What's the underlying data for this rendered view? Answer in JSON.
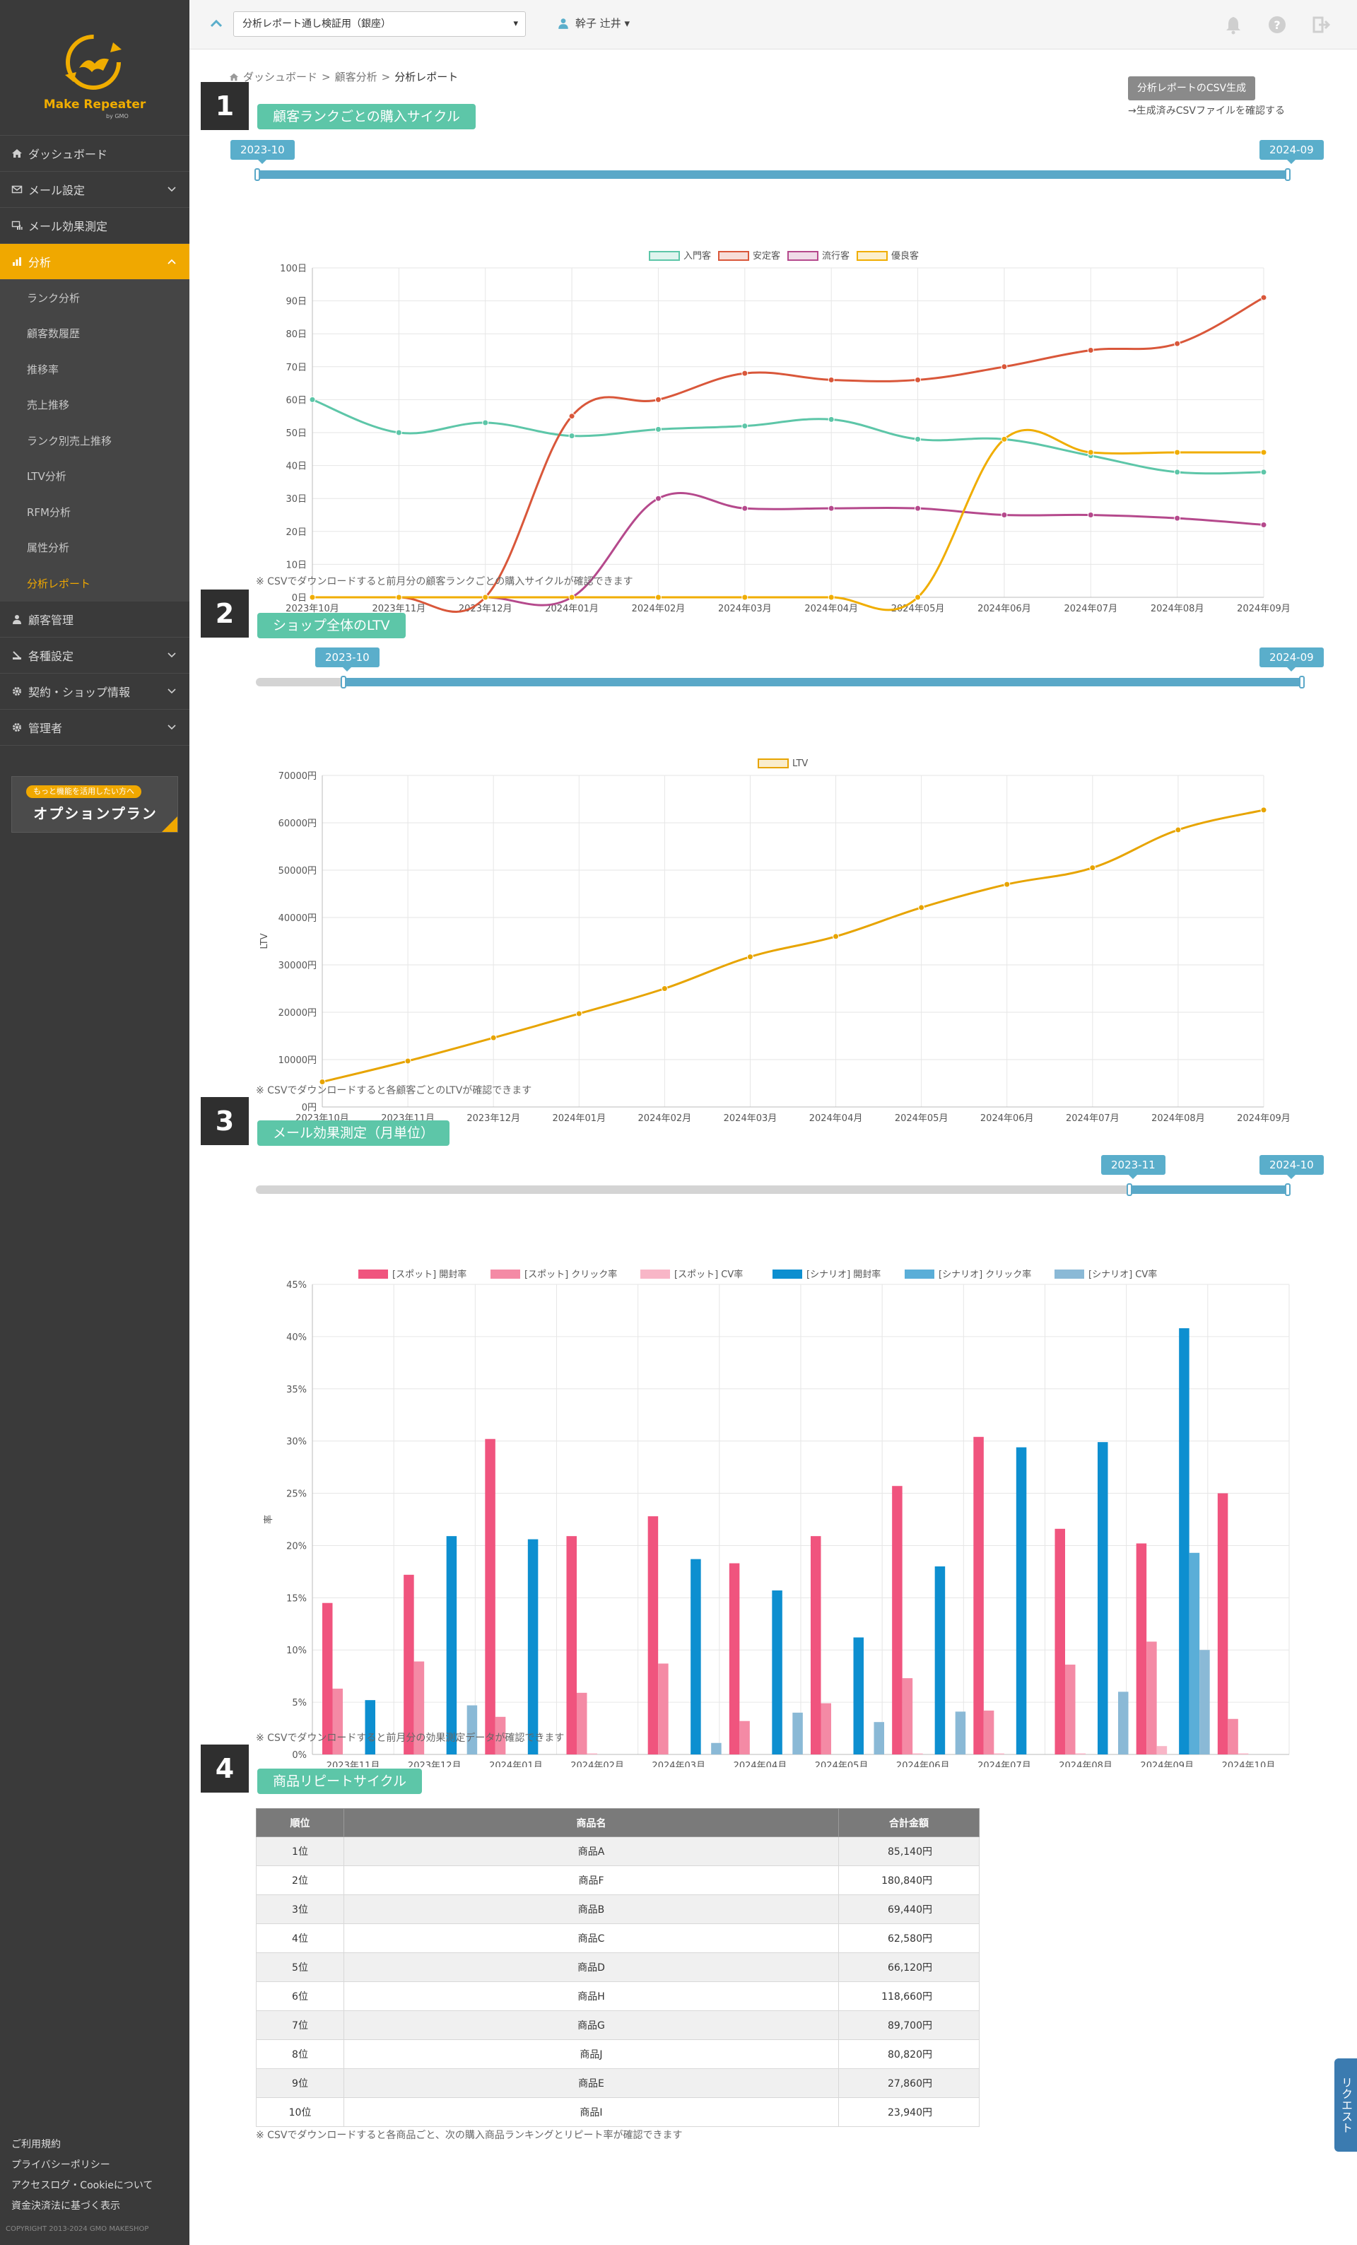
{
  "sidebar": {
    "logo_text": "Make Repeater",
    "logo_sub": "by GMO",
    "nav": [
      {
        "label": "ダッシュボード",
        "icon": "home-icon"
      },
      {
        "label": "メール設定",
        "icon": "mail-icon"
      },
      {
        "label": "メール効果測定",
        "icon": "mail-stats-icon"
      },
      {
        "label": "分析",
        "icon": "bar-chart-icon"
      }
    ],
    "sub_items": [
      "ランク分析",
      "顧客数履歴",
      "推移率",
      "売上推移",
      "ランク別売上推移",
      "LTV分析",
      "RFM分析",
      "属性分析",
      "分析レポート"
    ],
    "nav_bottom": [
      {
        "label": "顧客管理",
        "icon": "user-icon"
      },
      {
        "label": "各種設定",
        "icon": "settings-icon"
      },
      {
        "label": "契約・ショップ情報",
        "icon": "gear-icon"
      },
      {
        "label": "管理者",
        "icon": "admin-gear-icon"
      }
    ],
    "option_pill": "もっと機能を活用したい方へ",
    "option_title": "オプションプラン",
    "footer_links": [
      "ご利用規約",
      "プライバシーポリシー",
      "アクセスログ・Cookieについて",
      "資金決済法に基づく表示"
    ],
    "copyright": "COPYRIGHT 2013-2024 GMO MAKESHOP"
  },
  "topbar": {
    "shop_select": "分析レポート通し検証用（銀座）",
    "user": "幹子 辻井 ▾"
  },
  "breadcrumb": [
    "ダッシュボード",
    "顧客分析",
    "分析レポート"
  ],
  "csv": {
    "button": "分析レポートのCSV生成",
    "note": "→生成済みCSVファイルを確認する"
  },
  "sections": [
    {
      "num": "1",
      "title": "顧客ランクごとの購入サイクル",
      "range_start": "2023-10",
      "range_end": "2024-09",
      "note": "※ CSVでダウンロードすると前月分の顧客ランクごとの購入サイクルが確認できます"
    },
    {
      "num": "2",
      "title": "ショップ全体のLTV",
      "range_start": "2023-10",
      "range_end": "2024-09",
      "note": "※ CSVでダウンロードすると各顧客ごとのLTVが確認できます"
    },
    {
      "num": "3",
      "title": "メール効果測定（月単位）",
      "range_start": "2023-11",
      "range_end": "2024-10",
      "note": "※ CSVでダウンロードすると前月分の効果測定データが確認できます"
    },
    {
      "num": "4",
      "title": "商品リピートサイクル",
      "note": "※ CSVでダウンロードすると各商品ごと、次の購入商品ランキングとリピート率が確認できます"
    }
  ],
  "chart_data": [
    {
      "type": "line",
      "x": [
        "2023年10月",
        "2023年11月",
        "2023年12月",
        "2024年01月",
        "2024年02月",
        "2024年03月",
        "2024年04月",
        "2024年05月",
        "2024年06月",
        "2024年07月",
        "2024年08月",
        "2024年09月"
      ],
      "ylim": [
        0,
        100
      ],
      "yticks": [
        "0日",
        "10日",
        "20日",
        "30日",
        "40日",
        "50日",
        "60日",
        "70日",
        "80日",
        "90日",
        "100日"
      ],
      "legend_position": "top",
      "grid": true,
      "series": [
        {
          "name": "入門客",
          "color": "#5dc6a8",
          "values": [
            60,
            50,
            53,
            49,
            51,
            52,
            54,
            48,
            48,
            43,
            38,
            38
          ]
        },
        {
          "name": "安定客",
          "color": "#d9573a",
          "values": [
            0,
            0,
            0,
            55,
            60,
            68,
            66,
            66,
            70,
            75,
            77,
            91
          ]
        },
        {
          "name": "流行客",
          "color": "#b5498c",
          "values": [
            0,
            0,
            0,
            0,
            30,
            27,
            27,
            27,
            25,
            25,
            24,
            22
          ]
        },
        {
          "name": "優良客",
          "color": "#f0ad00",
          "values": [
            0,
            0,
            0,
            0,
            0,
            0,
            0,
            0,
            48,
            44,
            44,
            44
          ]
        }
      ]
    },
    {
      "type": "line",
      "x": [
        "2023年10月",
        "2023年11月",
        "2023年12月",
        "2024年01月",
        "2024年02月",
        "2024年03月",
        "2024年04月",
        "2024年05月",
        "2024年06月",
        "2024年07月",
        "2024年08月",
        "2024年09月"
      ],
      "ylabel": "LTV",
      "ylim": [
        0,
        70000
      ],
      "yticks": [
        "0円",
        "10000円",
        "20000円",
        "30000円",
        "40000円",
        "50000円",
        "60000円",
        "70000円"
      ],
      "legend_position": "top",
      "grid": true,
      "series": [
        {
          "name": "LTV",
          "color": "#e7a400",
          "values": [
            5300,
            9700,
            14600,
            19700,
            25000,
            31700,
            36000,
            42100,
            47000,
            50500,
            58500,
            62700
          ]
        }
      ]
    },
    {
      "type": "bar",
      "categories": [
        "2023年11月",
        "2023年12月",
        "2024年01月",
        "2024年02月",
        "2024年03月",
        "2024年04月",
        "2024年05月",
        "2024年06月",
        "2024年07月",
        "2024年08月",
        "2024年09月",
        "2024年10月"
      ],
      "ylabel": "率",
      "ylim": [
        0,
        45
      ],
      "yticks": [
        "0%",
        "5%",
        "10%",
        "15%",
        "20%",
        "25%",
        "30%",
        "35%",
        "40%",
        "45%"
      ],
      "legend_position": "top",
      "grid": true,
      "series": [
        {
          "name": "[スポット] 開封率",
          "color": "#f0547e",
          "values": [
            14.5,
            17.2,
            30.2,
            20.9,
            22.8,
            18.3,
            20.9,
            25.7,
            30.4,
            21.6,
            20.2,
            25.0
          ]
        },
        {
          "name": "[スポット] クリック率",
          "color": "#f48aa5",
          "values": [
            6.3,
            8.9,
            3.6,
            5.9,
            8.7,
            3.2,
            4.9,
            7.3,
            4.2,
            8.6,
            10.8,
            3.4
          ]
        },
        {
          "name": "[スポット] CV率",
          "color": "#f8b6c7",
          "values": [
            0,
            0,
            0,
            0.1,
            0,
            0,
            0,
            0.1,
            0.1,
            0.1,
            0.8,
            0.1
          ]
        },
        {
          "name": "[シナリオ] 開封率",
          "color": "#0d8fd0",
          "values": [
            5.2,
            20.9,
            20.6,
            0,
            18.7,
            15.7,
            11.2,
            18.0,
            29.4,
            29.9,
            40.8,
            0
          ]
        },
        {
          "name": "[シナリオ] クリック率",
          "color": "#5aaed8",
          "values": [
            0,
            0,
            0,
            0,
            0,
            0,
            0,
            0,
            0,
            0,
            19.3,
            0
          ]
        },
        {
          "name": "[シナリオ] CV率",
          "color": "#8ab9d6",
          "values": [
            0,
            4.7,
            0,
            0,
            1.1,
            4.0,
            3.1,
            4.1,
            0,
            6.0,
            10.0,
            0
          ]
        }
      ]
    }
  ],
  "repeat_table": {
    "headers": [
      "順位",
      "商品名",
      "合計金額"
    ],
    "rows": [
      [
        "1位",
        "商品A",
        "85,140円"
      ],
      [
        "2位",
        "商品F",
        "180,840円"
      ],
      [
        "3位",
        "商品B",
        "69,440円"
      ],
      [
        "4位",
        "商品C",
        "62,580円"
      ],
      [
        "5位",
        "商品D",
        "66,120円"
      ],
      [
        "6位",
        "商品H",
        "118,660円"
      ],
      [
        "7位",
        "商品G",
        "89,700円"
      ],
      [
        "8位",
        "商品J",
        "80,820円"
      ],
      [
        "9位",
        "商品E",
        "27,860円"
      ],
      [
        "10位",
        "商品I",
        "23,940円"
      ]
    ]
  },
  "request_tab": "リクエスト"
}
